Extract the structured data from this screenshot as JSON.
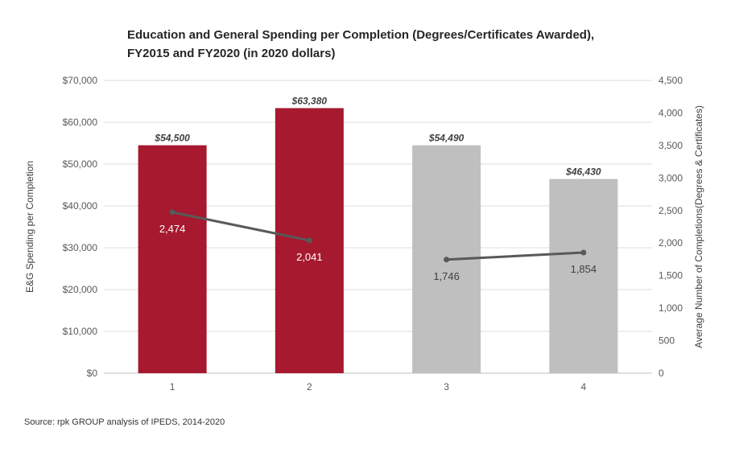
{
  "chart_data": {
    "type": "bar",
    "title": "Education and General Spending per Completion (Degrees/Certificates Awarded),",
    "subtitle": "FY2015 and FY2020 (in 2020 dollars)",
    "categories": [
      "1",
      "2",
      "3",
      "4"
    ],
    "series": [
      {
        "type": "bar",
        "axis": "left",
        "values": [
          54500,
          63380,
          54490,
          46430
        ],
        "data_labels": [
          "$54,500",
          "$63,380",
          "$54,490",
          "$46,430"
        ],
        "colors": [
          "#a6192e",
          "#a6192e",
          "#bfbfbf",
          "#bfbfbf"
        ]
      },
      {
        "type": "line",
        "axis": "right",
        "values": [
          2474,
          2041,
          1746,
          1854
        ],
        "data_labels": [
          "2,474",
          "2,041",
          "1,746",
          "1,854"
        ],
        "color": "#595959",
        "label_colors": [
          "#ffffff",
          "#ffffff",
          "#404040",
          "#404040"
        ]
      }
    ],
    "ylabel": "E&G Spending per Completion",
    "y2label": "Average Number of Completions(Degrees & Certificates)",
    "ylim": [
      0,
      70000
    ],
    "y2lim": [
      0,
      4500
    ],
    "yticks": [
      "$70,000",
      "$60,000",
      "$50,000",
      "$40,000",
      "$30,000",
      "$20,000",
      "$10,000",
      "$0"
    ],
    "y2ticks": [
      "4,500",
      "4,000",
      "3,500",
      "3,000",
      "2,500",
      "2,000",
      "1,500",
      "1,000",
      "500",
      "0"
    ],
    "grid": true,
    "legend": "none"
  },
  "source": "Source: rpk GROUP analysis of IPEDS, 2014-2020"
}
